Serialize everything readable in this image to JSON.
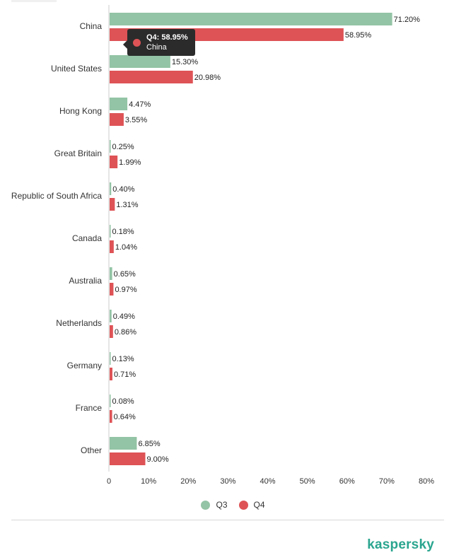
{
  "chart_data": {
    "type": "bar",
    "orientation": "horizontal",
    "categories": [
      "China",
      "United States",
      "Hong Kong",
      "Great Britain",
      "Republic of South Africa",
      "Canada",
      "Australia",
      "Netherlands",
      "Germany",
      "France",
      "Other"
    ],
    "series": [
      {
        "name": "Q3",
        "color": "#93c4a5",
        "values": [
          71.2,
          15.3,
          4.47,
          0.25,
          0.4,
          0.18,
          0.65,
          0.49,
          0.13,
          0.08,
          6.85
        ],
        "labels": [
          "71.20%",
          "15.30%",
          "4.47%",
          "0.25%",
          "0.40%",
          "0.18%",
          "0.65%",
          "0.49%",
          "0.13%",
          "0.08%",
          "6.85%"
        ]
      },
      {
        "name": "Q4",
        "color": "#de5356",
        "values": [
          58.95,
          20.98,
          3.55,
          1.99,
          1.31,
          1.04,
          0.97,
          0.86,
          0.71,
          0.64,
          9.0
        ],
        "labels": [
          "58.95%",
          "20.98%",
          "3.55%",
          "1.99%",
          "1.31%",
          "1.04%",
          "0.97%",
          "0.86%",
          "0.71%",
          "0.64%",
          "9.00%"
        ]
      }
    ],
    "xlim": [
      0,
      80
    ],
    "xticks": [
      0,
      10,
      20,
      30,
      40,
      50,
      60,
      70,
      80
    ],
    "xtick_labels": [
      "0",
      "10%",
      "20%",
      "30%",
      "40%",
      "50%",
      "60%",
      "70%",
      "80%"
    ],
    "legend_position": "bottom",
    "grid": false
  },
  "tooltip": {
    "title": "Q4: 58.95%",
    "subtitle": "China",
    "color": "#de5356"
  },
  "brand": "kaspersky"
}
